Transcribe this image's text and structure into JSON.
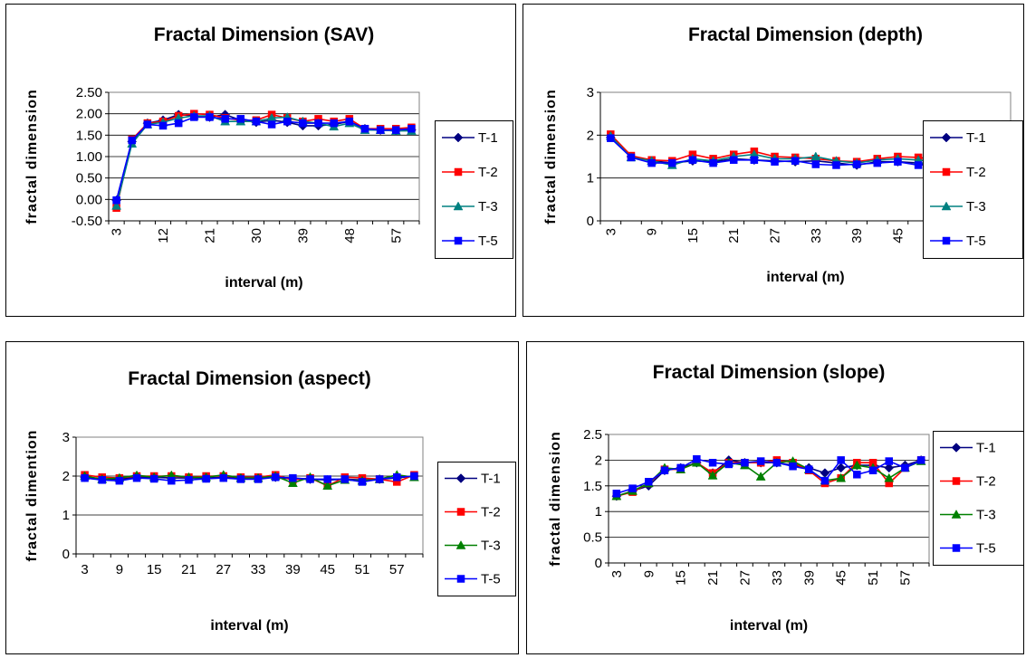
{
  "chart_data": [
    {
      "type": "line",
      "title": "Fractal Dimension (SAV)",
      "xlabel": "interval (m)",
      "ylabel": "fractal dimension",
      "x": [
        3,
        6,
        9,
        12,
        15,
        18,
        21,
        24,
        27,
        30,
        33,
        36,
        39,
        42,
        45,
        48,
        51,
        54,
        57,
        60
      ],
      "x_tick_labels": [
        "3",
        "12",
        "21",
        "30",
        "39",
        "48",
        "57"
      ],
      "y_tick_labels": [
        "-0.50",
        "0.00",
        "0.50",
        "1.00",
        "1.50",
        "2.00",
        "2.50"
      ],
      "ylim": [
        -0.5,
        2.5
      ],
      "grid": true,
      "legend_position": "right",
      "series": [
        {
          "name": "T-1",
          "color": "#000080",
          "marker": "diamond",
          "values": [
            -0.02,
            1.35,
            1.78,
            1.85,
            1.98,
            1.95,
            1.92,
            1.98,
            1.85,
            1.8,
            1.85,
            1.8,
            1.72,
            1.72,
            1.75,
            1.82,
            1.65,
            1.62,
            1.6,
            1.62
          ]
        },
        {
          "name": "T-2",
          "color": "#FF0000",
          "marker": "square",
          "values": [
            -0.2,
            1.4,
            1.78,
            1.82,
            1.95,
            2.0,
            1.98,
            1.9,
            1.85,
            1.85,
            1.98,
            1.9,
            1.82,
            1.88,
            1.82,
            1.88,
            1.65,
            1.65,
            1.65,
            1.68
          ]
        },
        {
          "name": "T-3",
          "color": "#008080",
          "marker": "triangle",
          "values": [
            -0.15,
            1.3,
            1.75,
            1.8,
            1.9,
            1.95,
            1.95,
            1.82,
            1.82,
            1.82,
            1.9,
            1.92,
            1.82,
            1.78,
            1.7,
            1.78,
            1.62,
            1.62,
            1.6,
            1.6
          ]
        },
        {
          "name": "T-5",
          "color": "#0000FF",
          "marker": "square",
          "values": [
            -0.02,
            1.38,
            1.75,
            1.72,
            1.78,
            1.92,
            1.92,
            1.88,
            1.88,
            1.82,
            1.75,
            1.82,
            1.78,
            1.78,
            1.78,
            1.82,
            1.65,
            1.62,
            1.62,
            1.65
          ]
        }
      ]
    },
    {
      "type": "line",
      "title": "Fractal Dimension (depth)",
      "xlabel": "interval (m)",
      "ylabel": "fractal dimension",
      "x": [
        3,
        6,
        9,
        12,
        15,
        18,
        21,
        24,
        27,
        30,
        33,
        36,
        39,
        42,
        45,
        48,
        51,
        54,
        57,
        60
      ],
      "x_tick_labels": [
        "3",
        "9",
        "15",
        "21",
        "27",
        "33",
        "39",
        "45",
        "51",
        "57"
      ],
      "y_tick_labels": [
        "0",
        "1",
        "2",
        "3"
      ],
      "ylim": [
        0,
        3
      ],
      "grid": true,
      "legend_position": "right",
      "series": [
        {
          "name": "T-1",
          "color": "#000080",
          "marker": "diamond",
          "values": [
            1.95,
            1.5,
            1.4,
            1.35,
            1.4,
            1.38,
            1.45,
            1.42,
            1.4,
            1.38,
            1.4,
            1.35,
            1.3,
            1.38,
            1.38,
            1.35,
            1.3,
            1.35,
            1.32,
            1.33
          ]
        },
        {
          "name": "T-2",
          "color": "#FF0000",
          "marker": "square",
          "values": [
            2.02,
            1.52,
            1.42,
            1.4,
            1.55,
            1.45,
            1.55,
            1.62,
            1.5,
            1.48,
            1.45,
            1.4,
            1.38,
            1.45,
            1.5,
            1.48,
            1.42,
            1.48,
            1.45,
            1.42
          ]
        },
        {
          "name": "T-3",
          "color": "#008080",
          "marker": "triangle",
          "values": [
            1.98,
            1.48,
            1.4,
            1.3,
            1.45,
            1.4,
            1.5,
            1.55,
            1.45,
            1.45,
            1.5,
            1.4,
            1.35,
            1.42,
            1.45,
            1.42,
            1.38,
            1.4,
            1.4,
            1.38
          ]
        },
        {
          "name": "T-5",
          "color": "#0000FF",
          "marker": "square",
          "values": [
            1.93,
            1.48,
            1.35,
            1.35,
            1.42,
            1.35,
            1.42,
            1.42,
            1.38,
            1.4,
            1.32,
            1.3,
            1.32,
            1.35,
            1.38,
            1.3,
            1.35,
            1.33,
            1.32,
            1.3
          ]
        }
      ]
    },
    {
      "type": "line",
      "title": "Fractal Dimension (aspect)",
      "xlabel": "interval (m)",
      "ylabel": "fractal dimention",
      "x": [
        3,
        6,
        9,
        12,
        15,
        18,
        21,
        24,
        27,
        30,
        33,
        36,
        39,
        42,
        45,
        48,
        51,
        54,
        57,
        60
      ],
      "x_tick_labels": [
        "3",
        "9",
        "15",
        "21",
        "27",
        "33",
        "39",
        "45",
        "51",
        "57"
      ],
      "y_tick_labels": [
        "0",
        "1",
        "2",
        "3"
      ],
      "ylim": [
        0,
        3
      ],
      "grid": true,
      "legend_position": "right",
      "series": [
        {
          "name": "T-1",
          "color": "#000080",
          "marker": "diamond",
          "values": [
            1.97,
            1.92,
            1.92,
            1.97,
            1.97,
            1.95,
            1.95,
            1.95,
            1.97,
            1.95,
            1.95,
            1.97,
            1.92,
            1.92,
            1.9,
            1.92,
            1.9,
            1.92,
            1.95,
            2.0
          ]
        },
        {
          "name": "T-2",
          "color": "#FF0000",
          "marker": "square",
          "values": [
            2.03,
            1.97,
            1.95,
            2.0,
            2.0,
            2.0,
            1.97,
            2.0,
            2.0,
            1.97,
            1.97,
            2.03,
            1.9,
            1.95,
            1.75,
            1.97,
            1.95,
            1.92,
            1.85,
            2.03
          ]
        },
        {
          "name": "T-3",
          "color": "#008000",
          "marker": "triangle",
          "values": [
            2.0,
            1.92,
            1.95,
            2.02,
            1.97,
            2.02,
            1.97,
            1.97,
            2.03,
            1.95,
            1.95,
            2.0,
            1.82,
            1.97,
            1.75,
            1.9,
            1.88,
            1.92,
            2.03,
            1.97
          ]
        },
        {
          "name": "T-5",
          "color": "#0000FF",
          "marker": "square",
          "values": [
            1.95,
            1.9,
            1.88,
            1.95,
            1.93,
            1.88,
            1.9,
            1.93,
            1.95,
            1.92,
            1.92,
            1.97,
            1.95,
            1.92,
            1.92,
            1.92,
            1.85,
            1.92,
            1.97,
            2.0
          ]
        }
      ]
    },
    {
      "type": "line",
      "title": "Fractal Dimension (slope)",
      "xlabel": "interval (m)",
      "ylabel": "fractal dimension",
      "x": [
        3,
        6,
        9,
        12,
        15,
        18,
        21,
        24,
        27,
        30,
        33,
        36,
        39,
        42,
        45,
        48,
        51,
        54,
        57,
        60
      ],
      "x_tick_labels": [
        "3",
        "9",
        "15",
        "21",
        "27",
        "33",
        "39",
        "45",
        "51",
        "57"
      ],
      "y_tick_labels": [
        "0",
        "0.5",
        "1",
        "1.5",
        "2",
        "2.5"
      ],
      "ylim": [
        0,
        2.5
      ],
      "grid": true,
      "legend_position": "right",
      "series": [
        {
          "name": "T-1",
          "color": "#000080",
          "marker": "diamond",
          "values": [
            1.3,
            1.4,
            1.5,
            1.8,
            1.85,
            1.95,
            1.75,
            2.0,
            1.95,
            1.95,
            1.95,
            1.9,
            1.85,
            1.75,
            1.85,
            1.9,
            1.9,
            1.85,
            1.9,
            2.0
          ]
        },
        {
          "name": "T-2",
          "color": "#FF0000",
          "marker": "square",
          "values": [
            1.3,
            1.38,
            1.55,
            1.82,
            1.82,
            1.95,
            1.75,
            1.95,
            1.95,
            1.95,
            2.0,
            1.95,
            1.8,
            1.55,
            1.65,
            1.95,
            1.95,
            1.55,
            1.85,
            2.0
          ]
        },
        {
          "name": "T-3",
          "color": "#008000",
          "marker": "triangle",
          "values": [
            1.3,
            1.4,
            1.55,
            1.85,
            1.82,
            1.95,
            1.7,
            1.95,
            1.9,
            1.68,
            1.95,
            1.98,
            1.82,
            1.6,
            1.65,
            1.9,
            1.85,
            1.65,
            1.85,
            1.98
          ]
        },
        {
          "name": "T-5",
          "color": "#0000FF",
          "marker": "square",
          "values": [
            1.35,
            1.45,
            1.58,
            1.8,
            1.85,
            2.02,
            1.95,
            1.92,
            1.95,
            1.98,
            1.95,
            1.88,
            1.82,
            1.6,
            2.0,
            1.72,
            1.8,
            1.98,
            1.85,
            2.0
          ]
        }
      ]
    }
  ]
}
